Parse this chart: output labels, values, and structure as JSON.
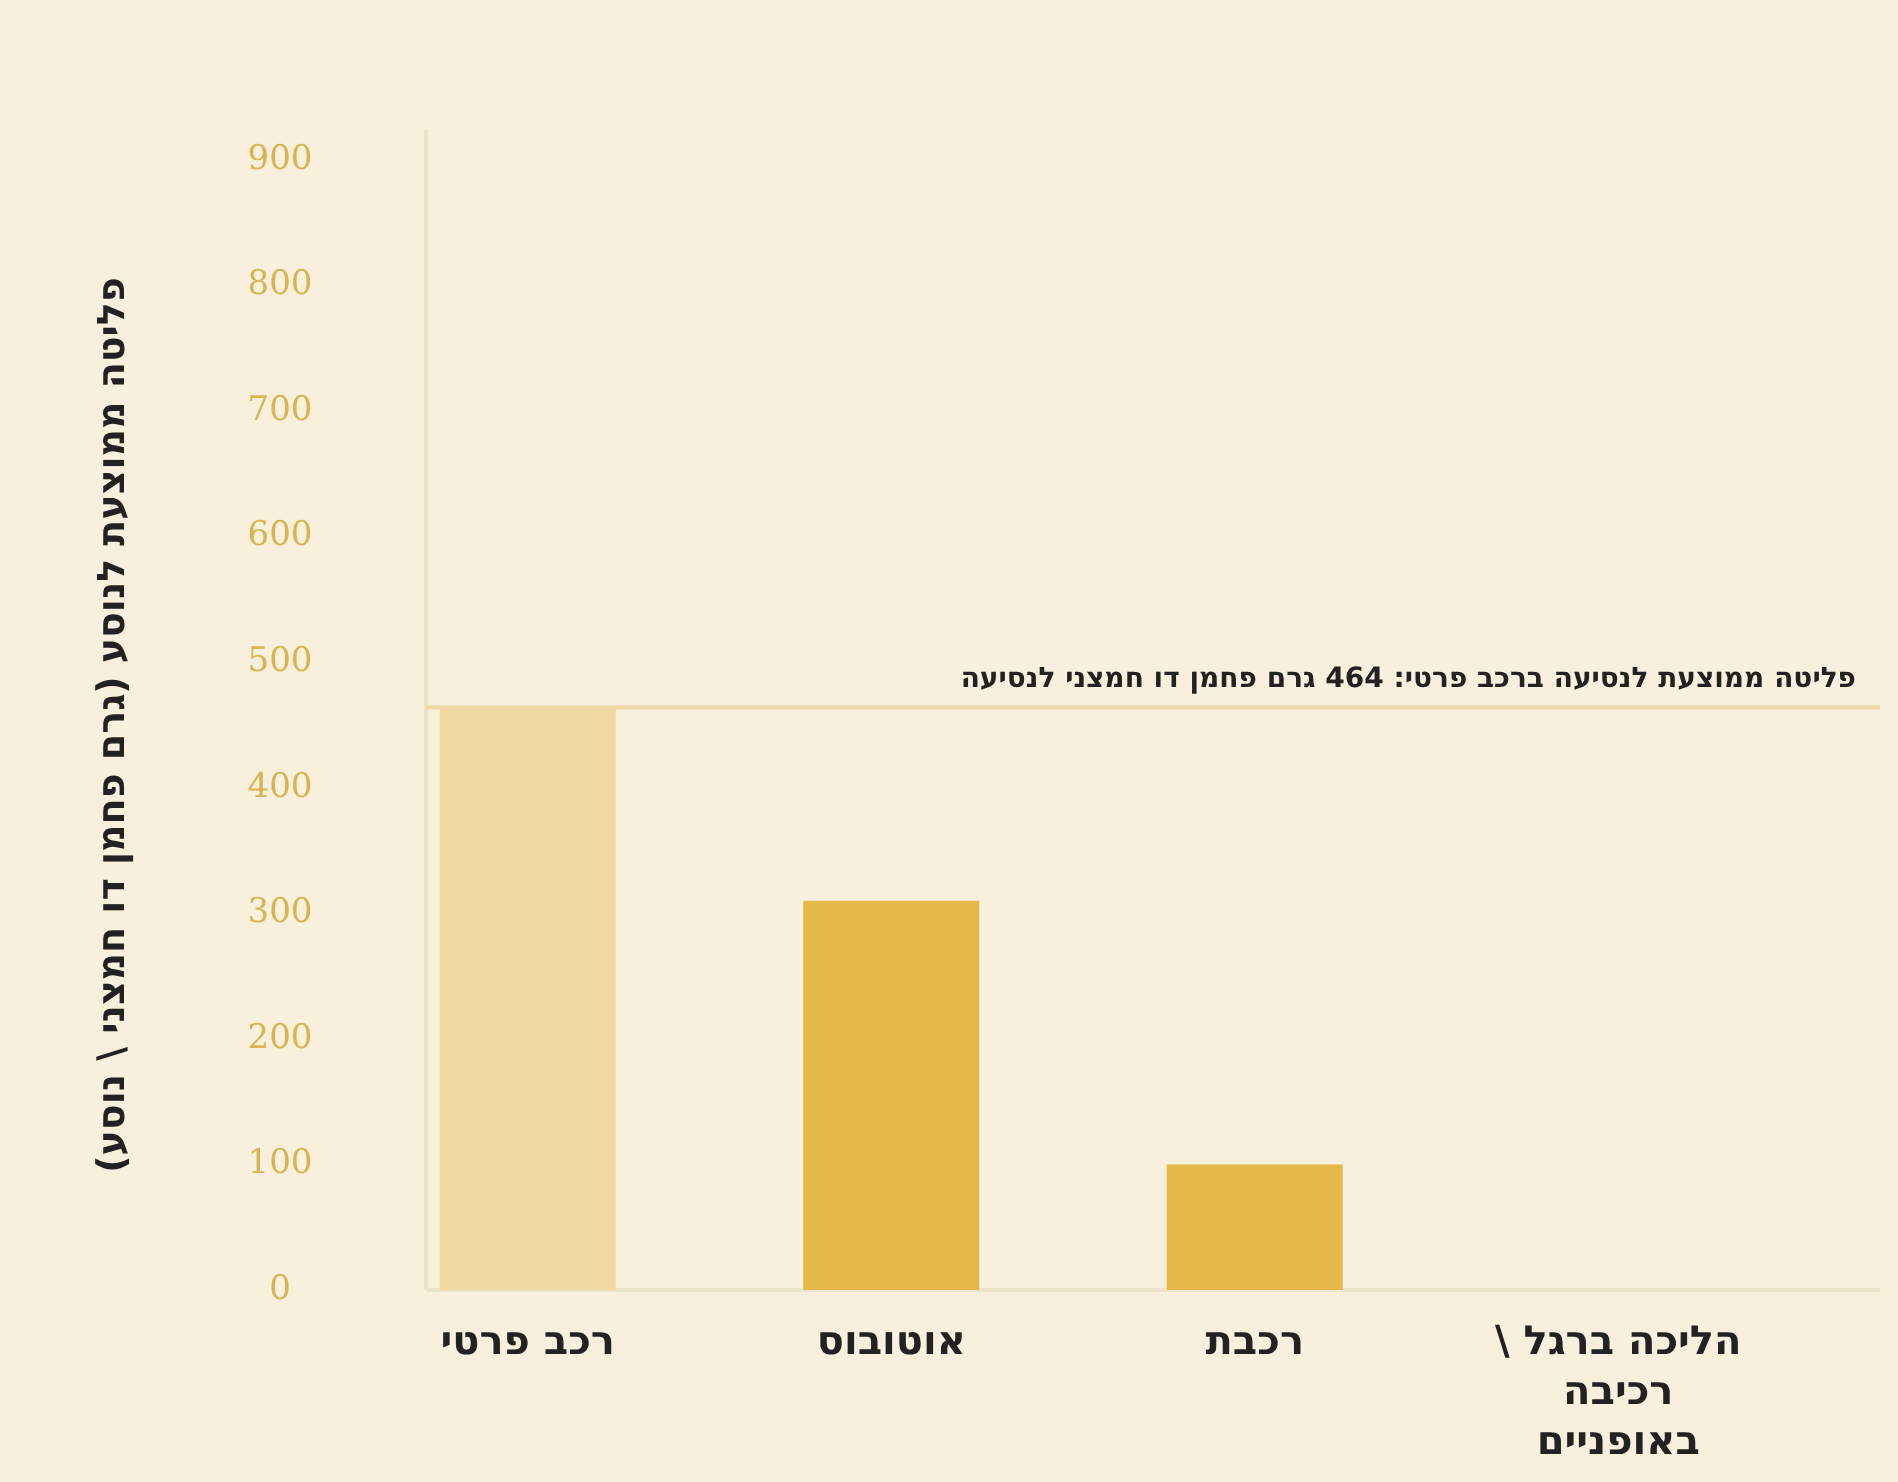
{
  "chart_data": {
    "type": "bar",
    "ylabel": "פליטה ממוצעת לנוסע (גרם פחמן דו חמצני \\ נוסע)",
    "categories": [
      "רכב פרטי",
      "אוטובוס",
      "רכבת",
      "הליכה ברגל \\ רכיבה באופניים"
    ],
    "values": [
      464,
      310,
      100,
      0
    ],
    "colors": [
      "#f0d9a0",
      "#e5b84a",
      "#e5b84a",
      "#e5b84a"
    ],
    "ylim": [
      0,
      900
    ],
    "yticks": [
      0,
      100,
      200,
      300,
      400,
      500,
      600,
      700,
      800,
      900
    ],
    "ref_lines": [
      {
        "axis": "y",
        "value": 464,
        "label": "פליטה ממוצעת לנסיעה ברכב פרטי: 464 גרם פחמן דו חמצני לנסיעה",
        "color": "#eed9a6"
      }
    ],
    "grid": false
  }
}
